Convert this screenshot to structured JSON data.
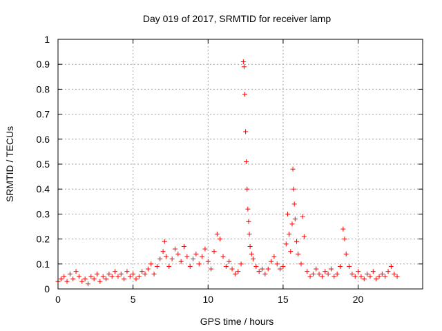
{
  "chart_data": {
    "type": "scatter",
    "title": "Day 019 of 2017, SRMTID for receiver lamp",
    "xlabel": "GPS time / hours",
    "ylabel": "SRMTID / TECUs",
    "xlim": [
      0,
      24.3
    ],
    "ylim": [
      0,
      1
    ],
    "x_ticks": [
      0,
      5,
      10,
      15,
      20
    ],
    "y_ticks": [
      0,
      0.1,
      0.2,
      0.3,
      0.4,
      0.5,
      0.6,
      0.7,
      0.8,
      0.9,
      1
    ],
    "x_tick_labels": [
      "0",
      "5",
      "10",
      "15",
      "20"
    ],
    "y_tick_labels": [
      "0",
      "0.1",
      "0.2",
      "0.3",
      "0.4",
      "0.5",
      "0.6",
      "0.7",
      "0.8",
      "0.9",
      "1"
    ],
    "grid": true,
    "marker": "+",
    "series_color": "#ff0000",
    "series": [
      {
        "name": "SRMTID",
        "points": [
          [
            0.0,
            0.03
          ],
          [
            0.2,
            0.04
          ],
          [
            0.4,
            0.05
          ],
          [
            0.6,
            0.03
          ],
          [
            0.8,
            0.06
          ],
          [
            1.0,
            0.04
          ],
          [
            1.2,
            0.07
          ],
          [
            1.4,
            0.05
          ],
          [
            1.6,
            0.03
          ],
          [
            1.8,
            0.04
          ],
          [
            2.0,
            0.02
          ],
          [
            2.2,
            0.05
          ],
          [
            2.4,
            0.04
          ],
          [
            2.6,
            0.06
          ],
          [
            2.8,
            0.03
          ],
          [
            3.0,
            0.05
          ],
          [
            3.2,
            0.04
          ],
          [
            3.4,
            0.06
          ],
          [
            3.6,
            0.05
          ],
          [
            3.8,
            0.07
          ],
          [
            4.0,
            0.05
          ],
          [
            4.2,
            0.06
          ],
          [
            4.4,
            0.04
          ],
          [
            4.6,
            0.07
          ],
          [
            4.8,
            0.05
          ],
          [
            5.0,
            0.06
          ],
          [
            5.2,
            0.04
          ],
          [
            5.4,
            0.05
          ],
          [
            5.6,
            0.07
          ],
          [
            5.8,
            0.06
          ],
          [
            6.0,
            0.08
          ],
          [
            6.2,
            0.1
          ],
          [
            6.4,
            0.06
          ],
          [
            6.6,
            0.09
          ],
          [
            6.8,
            0.12
          ],
          [
            7.0,
            0.15
          ],
          [
            7.1,
            0.19
          ],
          [
            7.2,
            0.13
          ],
          [
            7.4,
            0.09
          ],
          [
            7.6,
            0.12
          ],
          [
            7.8,
            0.16
          ],
          [
            8.0,
            0.14
          ],
          [
            8.2,
            0.11
          ],
          [
            8.4,
            0.17
          ],
          [
            8.6,
            0.13
          ],
          [
            8.8,
            0.09
          ],
          [
            9.0,
            0.12
          ],
          [
            9.2,
            0.14
          ],
          [
            9.4,
            0.1
          ],
          [
            9.6,
            0.13
          ],
          [
            9.8,
            0.16
          ],
          [
            10.0,
            0.11
          ],
          [
            10.2,
            0.08
          ],
          [
            10.4,
            0.15
          ],
          [
            10.6,
            0.22
          ],
          [
            10.8,
            0.2
          ],
          [
            11.0,
            0.13
          ],
          [
            11.2,
            0.09
          ],
          [
            11.4,
            0.11
          ],
          [
            11.6,
            0.08
          ],
          [
            11.8,
            0.06
          ],
          [
            12.0,
            0.07
          ],
          [
            12.2,
            0.1
          ],
          [
            12.35,
            0.91
          ],
          [
            12.4,
            0.89
          ],
          [
            12.45,
            0.78
          ],
          [
            12.5,
            0.63
          ],
          [
            12.55,
            0.51
          ],
          [
            12.6,
            0.4
          ],
          [
            12.65,
            0.32
          ],
          [
            12.7,
            0.27
          ],
          [
            12.75,
            0.22
          ],
          [
            12.8,
            0.17
          ],
          [
            12.9,
            0.14
          ],
          [
            13.0,
            0.12
          ],
          [
            13.2,
            0.09
          ],
          [
            13.4,
            0.07
          ],
          [
            13.6,
            0.08
          ],
          [
            13.8,
            0.06
          ],
          [
            14.0,
            0.08
          ],
          [
            14.2,
            0.11
          ],
          [
            14.4,
            0.13
          ],
          [
            14.6,
            0.1
          ],
          [
            14.8,
            0.08
          ],
          [
            15.0,
            0.09
          ],
          [
            15.2,
            0.18
          ],
          [
            15.3,
            0.3
          ],
          [
            15.4,
            0.22
          ],
          [
            15.5,
            0.15
          ],
          [
            15.6,
            0.26
          ],
          [
            15.65,
            0.48
          ],
          [
            15.7,
            0.4
          ],
          [
            15.75,
            0.34
          ],
          [
            15.8,
            0.28
          ],
          [
            15.9,
            0.19
          ],
          [
            16.0,
            0.14
          ],
          [
            16.2,
            0.1
          ],
          [
            16.3,
            0.29
          ],
          [
            16.4,
            0.21
          ],
          [
            16.6,
            0.07
          ],
          [
            16.8,
            0.05
          ],
          [
            17.0,
            0.06
          ],
          [
            17.2,
            0.08
          ],
          [
            17.4,
            0.06
          ],
          [
            17.6,
            0.05
          ],
          [
            17.8,
            0.07
          ],
          [
            18.0,
            0.06
          ],
          [
            18.2,
            0.08
          ],
          [
            18.4,
            0.05
          ],
          [
            18.6,
            0.06
          ],
          [
            18.8,
            0.09
          ],
          [
            19.0,
            0.24
          ],
          [
            19.1,
            0.2
          ],
          [
            19.2,
            0.14
          ],
          [
            19.4,
            0.09
          ],
          [
            19.6,
            0.06
          ],
          [
            19.8,
            0.05
          ],
          [
            20.0,
            0.07
          ],
          [
            20.2,
            0.05
          ],
          [
            20.4,
            0.04
          ],
          [
            20.6,
            0.06
          ],
          [
            20.8,
            0.05
          ],
          [
            21.0,
            0.07
          ],
          [
            21.2,
            0.04
          ],
          [
            21.4,
            0.05
          ],
          [
            21.6,
            0.06
          ],
          [
            21.8,
            0.05
          ],
          [
            22.0,
            0.07
          ],
          [
            22.2,
            0.09
          ],
          [
            22.4,
            0.06
          ],
          [
            22.6,
            0.05
          ]
        ]
      }
    ]
  }
}
